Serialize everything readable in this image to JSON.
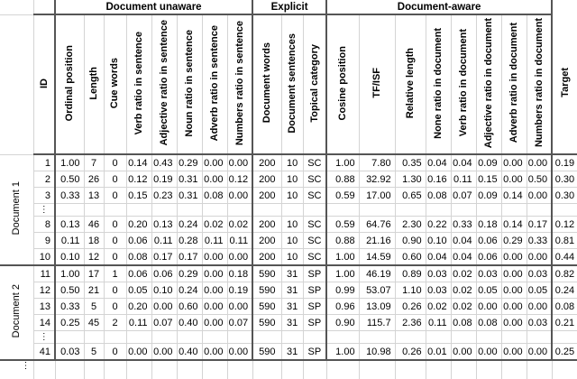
{
  "header": {
    "groups": [
      {
        "label": "Document unaware"
      },
      {
        "label": "Explicit"
      },
      {
        "label": "Document-aware"
      }
    ],
    "columns": [
      "ID",
      "Ordinal position",
      "Length",
      "Cue words",
      "Verb ratio in sentence",
      "Adjective ratio in sentence",
      "Noun ratio in sentence",
      "Adverb ratio in sentence",
      "Numbers ratio in sentence",
      "Document words",
      "Document sentences",
      "Topical category",
      "Cosine position",
      "TF/ISF",
      "Relative length",
      "None ratio in document",
      "Verb ratio in document",
      "Adjective ratio in document",
      "Adverb ratio in document",
      "Numbers ratio in document",
      "Target"
    ]
  },
  "body": {
    "groups": [
      {
        "label": "Document 1",
        "rows": [
          {
            "type": "data",
            "cells": [
              "1",
              "1.00",
              "7",
              "0",
              "0.14",
              "0.43",
              "0.29",
              "0.00",
              "0.00",
              "200",
              "10",
              "SC",
              "1.00",
              "7.80",
              "0.35",
              "0.04",
              "0.04",
              "0.09",
              "0.00",
              "0.00",
              "0.19"
            ]
          },
          {
            "type": "data",
            "cells": [
              "2",
              "0.50",
              "26",
              "0",
              "0.12",
              "0.19",
              "0.31",
              "0.00",
              "0.12",
              "200",
              "10",
              "SC",
              "0.88",
              "32.92",
              "1.30",
              "0.16",
              "0.11",
              "0.15",
              "0.00",
              "0.50",
              "0.30"
            ]
          },
          {
            "type": "data",
            "cells": [
              "3",
              "0.33",
              "13",
              "0",
              "0.15",
              "0.23",
              "0.31",
              "0.08",
              "0.00",
              "200",
              "10",
              "SC",
              "0.59",
              "17.00",
              "0.65",
              "0.08",
              "0.07",
              "0.09",
              "0.14",
              "0.00",
              "0.30"
            ]
          },
          {
            "type": "ellipsis",
            "symbol": "⋮"
          },
          {
            "type": "data",
            "cells": [
              "8",
              "0.13",
              "46",
              "0",
              "0.20",
              "0.13",
              "0.24",
              "0.02",
              "0.02",
              "200",
              "10",
              "SC",
              "0.59",
              "64.76",
              "2.30",
              "0.22",
              "0.33",
              "0.18",
              "0.14",
              "0.17",
              "0.12"
            ]
          },
          {
            "type": "data",
            "cells": [
              "9",
              "0.11",
              "18",
              "0",
              "0.06",
              "0.11",
              "0.28",
              "0.11",
              "0.11",
              "200",
              "10",
              "SC",
              "0.88",
              "21.16",
              "0.90",
              "0.10",
              "0.04",
              "0.06",
              "0.29",
              "0.33",
              "0.81"
            ]
          },
          {
            "type": "data",
            "cells": [
              "10",
              "0.10",
              "12",
              "0",
              "0.08",
              "0.17",
              "0.17",
              "0.00",
              "0.00",
              "200",
              "10",
              "SC",
              "1.00",
              "14.59",
              "0.60",
              "0.04",
              "0.04",
              "0.06",
              "0.00",
              "0.00",
              "0.44"
            ]
          }
        ]
      },
      {
        "label": "Document 2",
        "rows": [
          {
            "type": "data",
            "cells": [
              "11",
              "1.00",
              "17",
              "1",
              "0.06",
              "0.06",
              "0.29",
              "0.00",
              "0.18",
              "590",
              "31",
              "SP",
              "1.00",
              "46.19",
              "0.89",
              "0.03",
              "0.02",
              "0.03",
              "0.00",
              "0.03",
              "0.82"
            ]
          },
          {
            "type": "data",
            "cells": [
              "12",
              "0.50",
              "21",
              "0",
              "0.05",
              "0.10",
              "0.24",
              "0.00",
              "0.19",
              "590",
              "31",
              "SP",
              "0.99",
              "53.07",
              "1.10",
              "0.03",
              "0.02",
              "0.05",
              "0.00",
              "0.05",
              "0.24"
            ]
          },
          {
            "type": "data",
            "cells": [
              "13",
              "0.33",
              "5",
              "0",
              "0.20",
              "0.00",
              "0.60",
              "0.00",
              "0.00",
              "590",
              "31",
              "SP",
              "0.96",
              "13.09",
              "0.26",
              "0.02",
              "0.02",
              "0.00",
              "0.00",
              "0.00",
              "0.08"
            ]
          },
          {
            "type": "data",
            "cells": [
              "14",
              "0.25",
              "45",
              "2",
              "0.11",
              "0.07",
              "0.40",
              "0.00",
              "0.07",
              "590",
              "31",
              "SP",
              "0.90",
              "115.7",
              "2.36",
              "0.11",
              "0.08",
              "0.08",
              "0.00",
              "0.03",
              "0.21"
            ]
          },
          {
            "type": "ellipsis",
            "symbol": "⋮"
          },
          {
            "type": "data",
            "cells": [
              "41",
              "0.03",
              "5",
              "0",
              "0.00",
              "0.00",
              "0.40",
              "0.00",
              "0.00",
              "590",
              "31",
              "SP",
              "1.00",
              "10.98",
              "0.26",
              "0.01",
              "0.00",
              "0.00",
              "0.00",
              "0.00",
              "0.25"
            ]
          }
        ]
      }
    ],
    "trailing_ellipsis": "⋮"
  }
}
